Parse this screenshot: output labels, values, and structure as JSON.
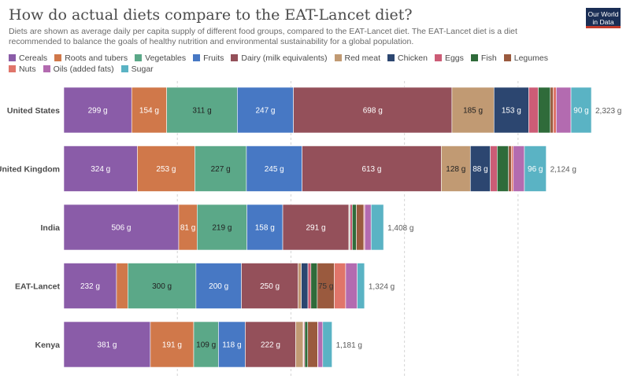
{
  "header": {
    "title": "How do actual diets compare to the EAT-Lancet diet?",
    "subtitle": "Diets are shown as average daily per capita supply of different food groups, compared to the EAT-Lancet diet. The EAT-Lancet diet is a diet recommended to balance the goals of healthy nutrition and environmental sustainability for a global population.",
    "logo_line1": "Our World",
    "logo_line2": "in Data"
  },
  "chart_data": {
    "type": "bar",
    "orientation": "horizontal",
    "stacked": true,
    "unit": "g",
    "categories": [
      "United States",
      "United Kingdom",
      "India",
      "EAT-Lancet",
      "Kenya"
    ],
    "totals": [
      "2,323 g",
      "2,124 g",
      "1,408 g",
      "1,324 g",
      "1,181 g"
    ],
    "xlim": [
      0,
      2500
    ],
    "grid": true,
    "legend_position": "top",
    "series": [
      {
        "name": "Cereals",
        "color": "#8a5ca8",
        "values": [
          299,
          324,
          506,
          232,
          381
        ],
        "labels": [
          "299 g",
          "324 g",
          "506 g",
          "232 g",
          "381 g"
        ]
      },
      {
        "name": "Roots and tubers",
        "color": "#d0784a",
        "values": [
          154,
          253,
          81,
          50,
          191
        ],
        "labels": [
          "154 g",
          "253 g",
          "81 g",
          "",
          "191 g"
        ]
      },
      {
        "name": "Vegetables",
        "color": "#5ba888",
        "values": [
          311,
          227,
          219,
          300,
          109
        ],
        "labels": [
          "311 g",
          "227 g",
          "219 g",
          "300 g",
          "109 g"
        ]
      },
      {
        "name": "Fruits",
        "color": "#4778c4",
        "values": [
          247,
          245,
          158,
          200,
          118
        ],
        "labels": [
          "247 g",
          "245 g",
          "158 g",
          "200 g",
          "118 g"
        ]
      },
      {
        "name": "Dairy (milk equivalents)",
        "color": "#94505a",
        "values": [
          698,
          613,
          291,
          250,
          222
        ],
        "labels": [
          "698 g",
          "613 g",
          "291 g",
          "250 g",
          "222 g"
        ]
      },
      {
        "name": "Red meat",
        "color": "#c19a73",
        "values": [
          185,
          128,
          3,
          14,
          33
        ],
        "labels": [
          "185 g",
          "128 g",
          "",
          "",
          ""
        ]
      },
      {
        "name": "Chicken",
        "color": "#2c4670",
        "values": [
          153,
          88,
          3,
          29,
          2
        ],
        "labels": [
          "153 g",
          "88 g",
          "",
          "",
          ""
        ]
      },
      {
        "name": "Eggs",
        "color": "#cc5c76",
        "values": [
          42,
          30,
          9,
          13,
          5
        ],
        "labels": [
          "",
          "",
          "",
          "",
          ""
        ]
      },
      {
        "name": "Fish",
        "color": "#2f6b3a",
        "values": [
          53,
          50,
          18,
          28,
          13
        ],
        "labels": [
          "",
          "",
          "",
          "",
          ""
        ]
      },
      {
        "name": "Legumes",
        "color": "#9a5a3e",
        "values": [
          13,
          13,
          33,
          75,
          44
        ],
        "labels": [
          "",
          "",
          "",
          "75 g",
          ""
        ]
      },
      {
        "name": "Nuts",
        "color": "#e0756a",
        "values": [
          13,
          8,
          4,
          50,
          1
        ],
        "labels": [
          "",
          "",
          "",
          "",
          ""
        ]
      },
      {
        "name": "Oils (added fats)",
        "color": "#b36bb0",
        "values": [
          65,
          49,
          28,
          51,
          21
        ],
        "labels": [
          "",
          "",
          "",
          "",
          ""
        ]
      },
      {
        "name": "Sugar",
        "color": "#5ab3c4",
        "values": [
          90,
          96,
          55,
          32,
          41
        ],
        "labels": [
          "90 g",
          "96 g",
          "",
          "",
          ""
        ]
      }
    ]
  }
}
